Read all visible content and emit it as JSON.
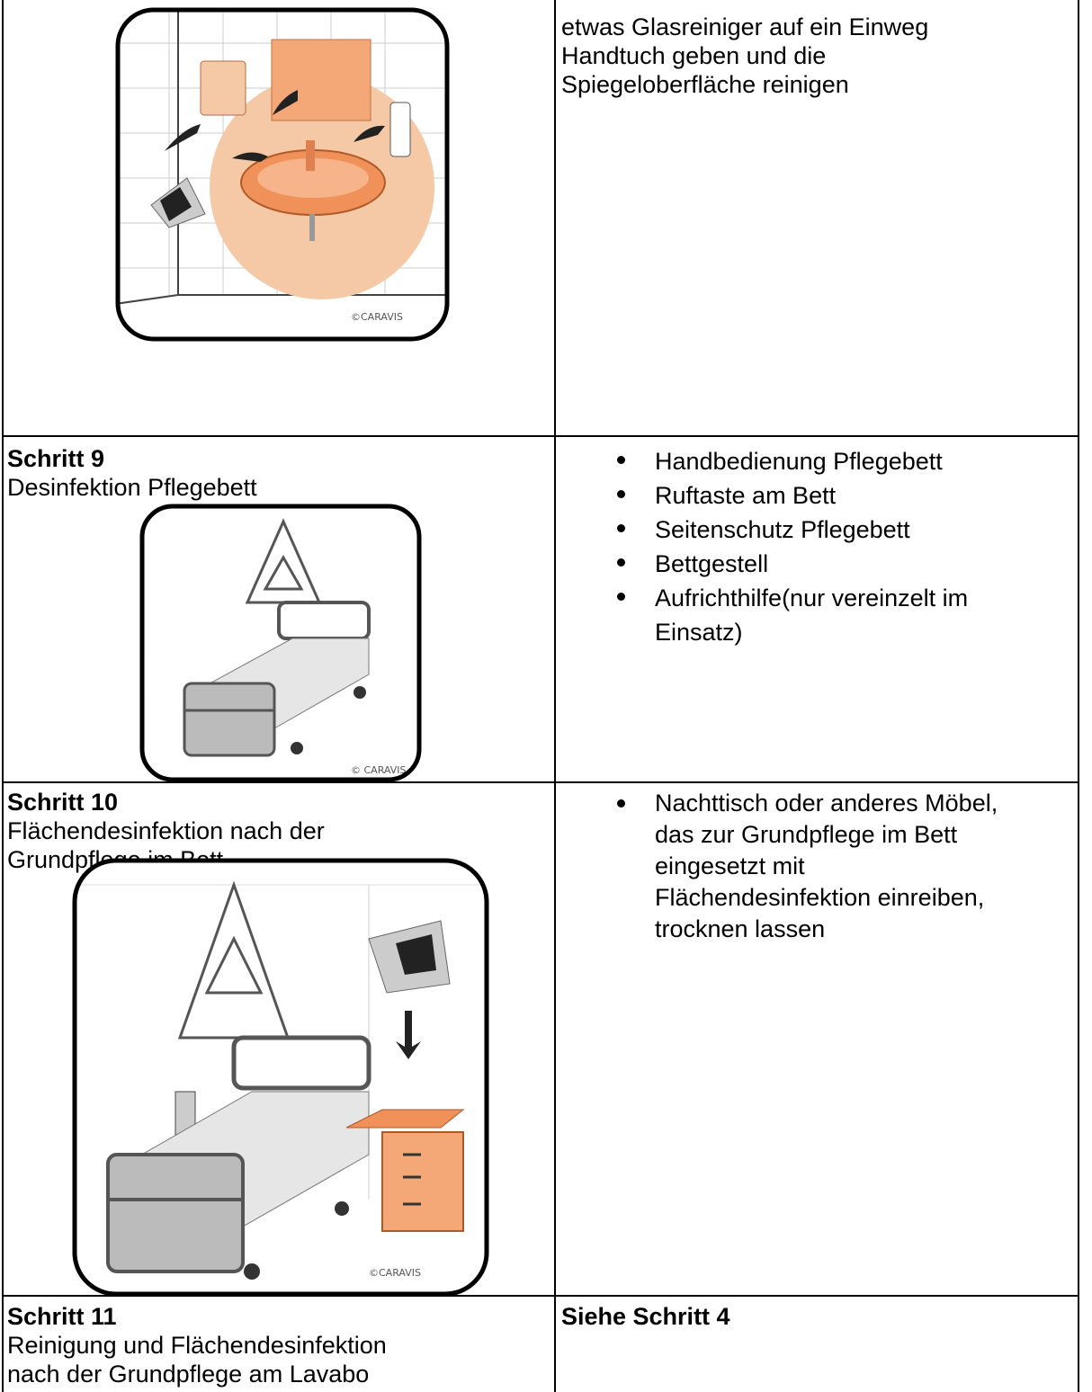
{
  "table": {
    "rows": [
      {
        "left": {
          "image_credit": "©CARAVIS"
        },
        "right": {
          "lines": [
            "etwas Glasreiniger auf ein Einweg",
            "Handtuch geben und die",
            "Spiegeloberfläche reinigen"
          ]
        }
      },
      {
        "left": {
          "heading": "Schritt 9",
          "lines": [
            "Desinfektion Pflegebett"
          ],
          "image_credit": "© CARAVIS"
        },
        "right": {
          "bullets": [
            [
              "Handbedienung Pflegebett"
            ],
            [
              "Ruftaste am Bett"
            ],
            [
              "Seitenschutz Pflegebett"
            ],
            [
              "Bettgestell"
            ],
            [
              "Aufrichthilfe(nur vereinzelt im",
              "Einsatz)"
            ]
          ]
        }
      },
      {
        "left": {
          "heading": "Schritt 10",
          "lines": [
            "Flächendesinfektion nach der",
            "Grundpflege im Bett"
          ],
          "image_credit": "©CARAVIS"
        },
        "right": {
          "bullets": [
            [
              "Nachttisch oder anderes Möbel,",
              "das zur Grundpflege im Bett",
              "eingesetzt mit",
              "Flächendesinfektion einreiben,",
              "trocknen lassen"
            ]
          ]
        }
      },
      {
        "left": {
          "heading": "Schritt 11",
          "lines": [
            "Reinigung und Flächendesinfektion",
            "nach der Grundpflege am Lavabo"
          ]
        },
        "right": {
          "heading": "Siehe Schritt 4"
        }
      }
    ]
  }
}
